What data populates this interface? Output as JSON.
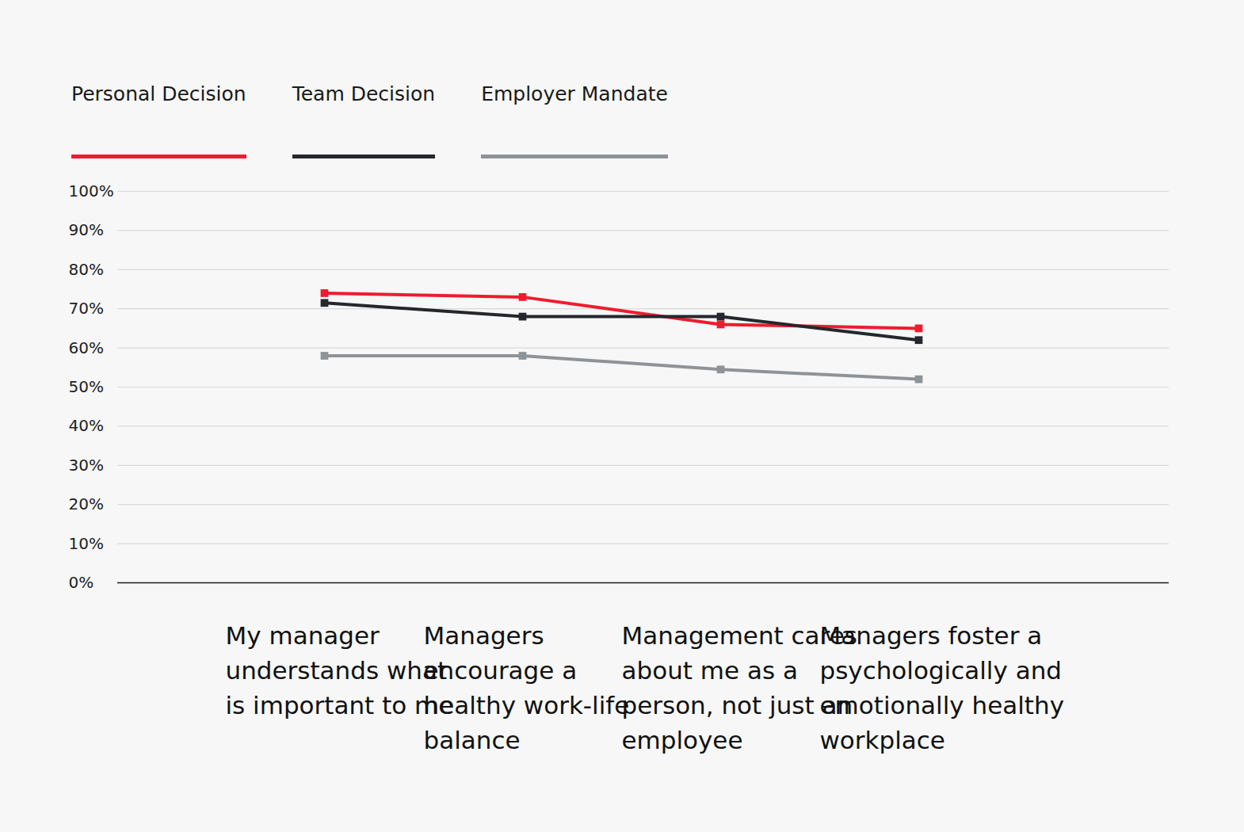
{
  "chart_data": {
    "type": "line",
    "categories": [
      "My manager understands what is important to me",
      "Managers encourage a healthy work-life balance",
      "Management cares about me as a person, not just an employee",
      "Managers foster a psychologically and emotionally healthy workplace"
    ],
    "series": [
      {
        "name": "Personal Decision",
        "color": "#ee1c2e",
        "marker": "square",
        "values": [
          74,
          73,
          66,
          65
        ]
      },
      {
        "name": "Team Decision",
        "color": "#25272d",
        "marker": "square",
        "values": [
          71.5,
          68,
          68,
          62
        ]
      },
      {
        "name": "Employer Mandate",
        "color": "#8e9397",
        "marker": "square",
        "values": [
          58,
          58,
          54.5,
          52
        ]
      }
    ],
    "ylim": [
      0,
      100
    ],
    "yticks": [
      {
        "value": 0,
        "label": "0%"
      },
      {
        "value": 10,
        "label": "10%"
      },
      {
        "value": 20,
        "label": "20%"
      },
      {
        "value": 30,
        "label": "30%"
      },
      {
        "value": 40,
        "label": "40%"
      },
      {
        "value": 50,
        "label": "50%"
      },
      {
        "value": 60,
        "label": "60%"
      },
      {
        "value": 70,
        "label": "70%"
      },
      {
        "value": 80,
        "label": "80%"
      },
      {
        "value": 90,
        "label": "90%"
      },
      {
        "value": 100,
        "label": "100%"
      }
    ],
    "grid": true,
    "legend": "top"
  }
}
